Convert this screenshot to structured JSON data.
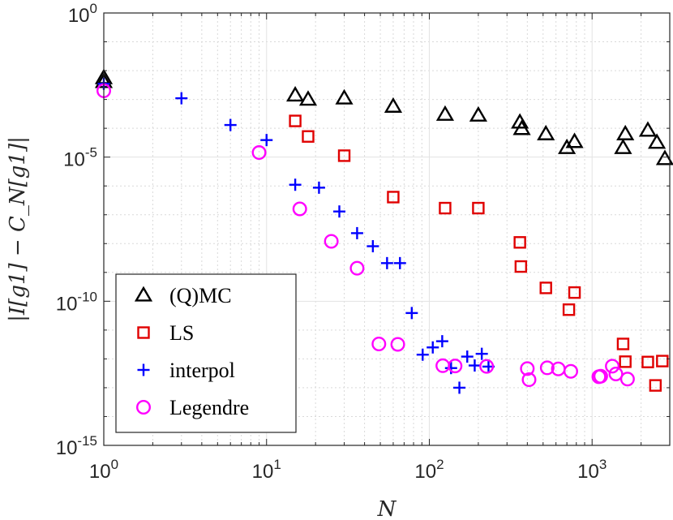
{
  "chart_data": {
    "type": "scatter",
    "title": "",
    "xlabel": "N",
    "ylabel": "|I[g1] − C_N[g1]|",
    "xscale": "log",
    "yscale": "log",
    "xlim": [
      1,
      3000
    ],
    "ylim": [
      1e-15,
      1
    ],
    "grid": true,
    "minor_grid": true,
    "legend_location": "bottom-left",
    "x_ticks": [
      {
        "value": 1,
        "mantissa": "10",
        "exponent": "0"
      },
      {
        "value": 10,
        "mantissa": "10",
        "exponent": "1"
      },
      {
        "value": 100,
        "mantissa": "10",
        "exponent": "2"
      },
      {
        "value": 1000,
        "mantissa": "10",
        "exponent": "3"
      }
    ],
    "y_ticks": [
      {
        "value": 1,
        "mantissa": "10",
        "exponent": "0"
      },
      {
        "value": 1e-05,
        "mantissa": "10",
        "exponent": "-5"
      },
      {
        "value": 1e-10,
        "mantissa": "10",
        "exponent": "-10"
      },
      {
        "value": 1e-15,
        "mantissa": "10",
        "exponent": "-15"
      }
    ],
    "series": [
      {
        "name": "(Q)MC",
        "marker": "triangle",
        "color": "#000000",
        "x": [
          1,
          1,
          15,
          18,
          30,
          60,
          125,
          200,
          360,
          370,
          520,
          700,
          780,
          1550,
          1600,
          2200,
          2500,
          2800
        ],
        "y": [
          0.0056,
          0.0041,
          0.0014,
          0.001,
          0.0011,
          0.00057,
          0.0003,
          0.00028,
          0.00016,
          9.6e-05,
          6.3e-05,
          2.1e-05,
          3.4e-05,
          2.1e-05,
          6.3e-05,
          8.4e-05,
          3.2e-05,
          8.7e-06
        ]
      },
      {
        "name": "LS",
        "marker": "square",
        "color": "#e00000",
        "x": [
          15,
          18,
          30,
          60,
          125,
          200,
          360,
          365,
          520,
          720,
          780,
          1550,
          1600,
          2200,
          2450,
          2700
        ],
        "y": [
          0.00018,
          5.2e-05,
          1.12e-05,
          4.1e-07,
          1.7e-07,
          1.7e-07,
          1.1e-08,
          1.6e-09,
          2.9e-10,
          5.1e-11,
          2e-10,
          3.3e-12,
          8e-13,
          7.8e-13,
          1.2e-13,
          8.4e-13
        ]
      },
      {
        "name": "interpol",
        "marker": "plus",
        "color": "#0000ff",
        "x": [
          1,
          3,
          6,
          10,
          15,
          21,
          28,
          36,
          45,
          55,
          66,
          78,
          91,
          105,
          120,
          136,
          153,
          171,
          190,
          210,
          231
        ],
        "y": [
          0.0035,
          0.0011,
          0.00013,
          3.9e-05,
          1.1e-06,
          8.7e-07,
          1.3e-07,
          2.3e-08,
          8.1e-09,
          2.1e-09,
          2.1e-09,
          3.9e-11,
          1.4e-12,
          2.5e-12,
          4.1e-12,
          4.8e-13,
          1e-13,
          1.2e-12,
          5.9e-13,
          1.5e-12,
          5.4e-13
        ]
      },
      {
        "name": "Legendre",
        "marker": "circle",
        "color": "#ff00ff",
        "x": [
          1,
          9,
          16,
          25,
          36,
          49,
          64,
          121,
          144,
          225,
          400,
          410,
          530,
          620,
          740,
          1100,
          1130,
          1330,
          1400,
          1650
        ],
        "y": [
          0.002,
          1.44e-05,
          1.6e-07,
          1.2e-08,
          1.4e-09,
          3.3e-12,
          3.2e-12,
          5.8e-13,
          5.7e-13,
          5.5e-13,
          4.6e-13,
          1.9e-13,
          4.9e-13,
          4.5e-13,
          3.7e-13,
          2.4e-13,
          2.5e-13,
          5.6e-13,
          3e-13,
          2e-13
        ]
      }
    ]
  }
}
